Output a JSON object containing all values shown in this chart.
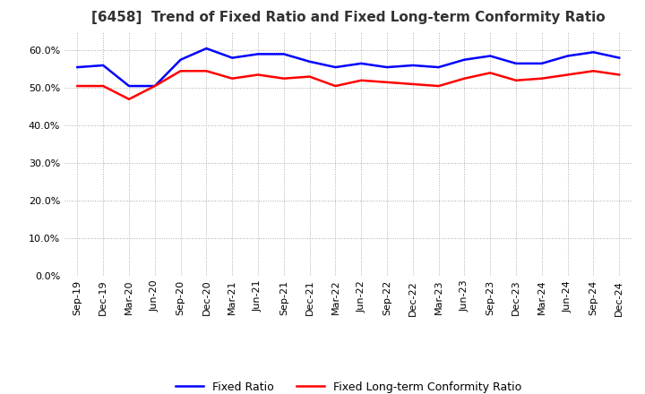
{
  "title": "[6458]  Trend of Fixed Ratio and Fixed Long-term Conformity Ratio",
  "x_labels": [
    "Sep-19",
    "Dec-19",
    "Mar-20",
    "Jun-20",
    "Sep-20",
    "Dec-20",
    "Mar-21",
    "Jun-21",
    "Sep-21",
    "Dec-21",
    "Mar-22",
    "Jun-22",
    "Sep-22",
    "Dec-22",
    "Mar-23",
    "Jun-23",
    "Sep-23",
    "Dec-23",
    "Mar-24",
    "Jun-24",
    "Sep-24",
    "Dec-24"
  ],
  "fixed_ratio": [
    55.5,
    56.0,
    50.5,
    50.5,
    57.5,
    60.5,
    58.0,
    59.0,
    59.0,
    57.0,
    55.5,
    56.5,
    55.5,
    56.0,
    55.5,
    57.5,
    58.5,
    56.5,
    56.5,
    58.5,
    59.5,
    58.0
  ],
  "fixed_lt_ratio": [
    50.5,
    50.5,
    47.0,
    50.5,
    54.5,
    54.5,
    52.5,
    53.5,
    52.5,
    53.0,
    50.5,
    52.0,
    51.5,
    51.0,
    50.5,
    52.5,
    54.0,
    52.0,
    52.5,
    53.5,
    54.5,
    53.5
  ],
  "fixed_ratio_color": "#0000FF",
  "fixed_lt_ratio_color": "#FF0000",
  "ylim_pct": [
    0.0,
    65.0
  ],
  "yticks_pct": [
    0.0,
    10.0,
    20.0,
    30.0,
    40.0,
    50.0,
    60.0
  ],
  "background_color": "#FFFFFF",
  "title_fontsize": 11,
  "legend_labels": [
    "Fixed Ratio",
    "Fixed Long-term Conformity Ratio"
  ],
  "grid_color": "#aaaaaa",
  "grid_style": "dotted"
}
